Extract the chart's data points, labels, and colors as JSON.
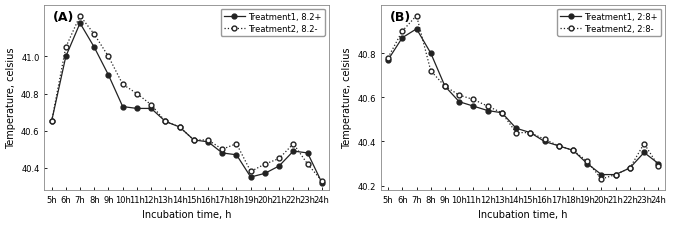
{
  "x_labels": [
    "5h",
    "6h",
    "7h",
    "8h",
    "9h",
    "10h",
    "11h",
    "12h",
    "13h",
    "14h",
    "15h",
    "16h",
    "17h",
    "18h",
    "19h",
    "20h",
    "21h",
    "22h",
    "23h",
    "24h"
  ],
  "panel_A": {
    "title": "(A)",
    "ylabel": "Temperature, celsius",
    "xlabel": "Incubation time, h",
    "legend1": "Treatment1, 8.2+",
    "legend2": "Treatment2, 8.2-",
    "ylim": [
      40.28,
      41.28
    ],
    "yticks": [
      40.4,
      40.6,
      40.8,
      41.0
    ],
    "t1": [
      40.65,
      41.0,
      41.18,
      41.05,
      40.9,
      40.73,
      40.72,
      40.72,
      40.65,
      40.62,
      40.55,
      40.54,
      40.48,
      40.47,
      40.35,
      40.37,
      40.41,
      40.49,
      40.48,
      40.32
    ],
    "t2": [
      40.65,
      41.05,
      41.22,
      41.12,
      41.0,
      40.85,
      40.8,
      40.74,
      40.65,
      40.62,
      40.55,
      40.55,
      40.5,
      40.53,
      40.38,
      40.42,
      40.45,
      40.53,
      40.42,
      40.33
    ]
  },
  "panel_B": {
    "title": "(B)",
    "ylabel": "Temperature, celsius",
    "xlabel": "Incubation time, h",
    "legend1": "Treatment1, 2:8+",
    "legend2": "Treatment2, 2:8-",
    "ylim": [
      40.18,
      41.02
    ],
    "yticks": [
      40.2,
      40.4,
      40.6,
      40.8
    ],
    "t1": [
      40.77,
      40.87,
      40.91,
      40.8,
      40.65,
      40.58,
      40.56,
      40.54,
      40.53,
      40.46,
      40.44,
      40.4,
      40.38,
      40.36,
      40.3,
      40.25,
      40.25,
      40.28,
      40.35,
      40.3
    ],
    "t2": [
      40.78,
      40.9,
      40.97,
      40.72,
      40.65,
      40.61,
      40.59,
      40.56,
      40.53,
      40.44,
      40.44,
      40.41,
      40.38,
      40.36,
      40.31,
      40.23,
      40.25,
      40.28,
      40.39,
      40.29
    ]
  },
  "line_color": "#222222",
  "bg_color": "#ffffff",
  "markersize": 3.5,
  "linewidth": 0.9,
  "fontsize_tick": 6,
  "fontsize_label": 7,
  "fontsize_legend": 6,
  "fontsize_title": 9
}
